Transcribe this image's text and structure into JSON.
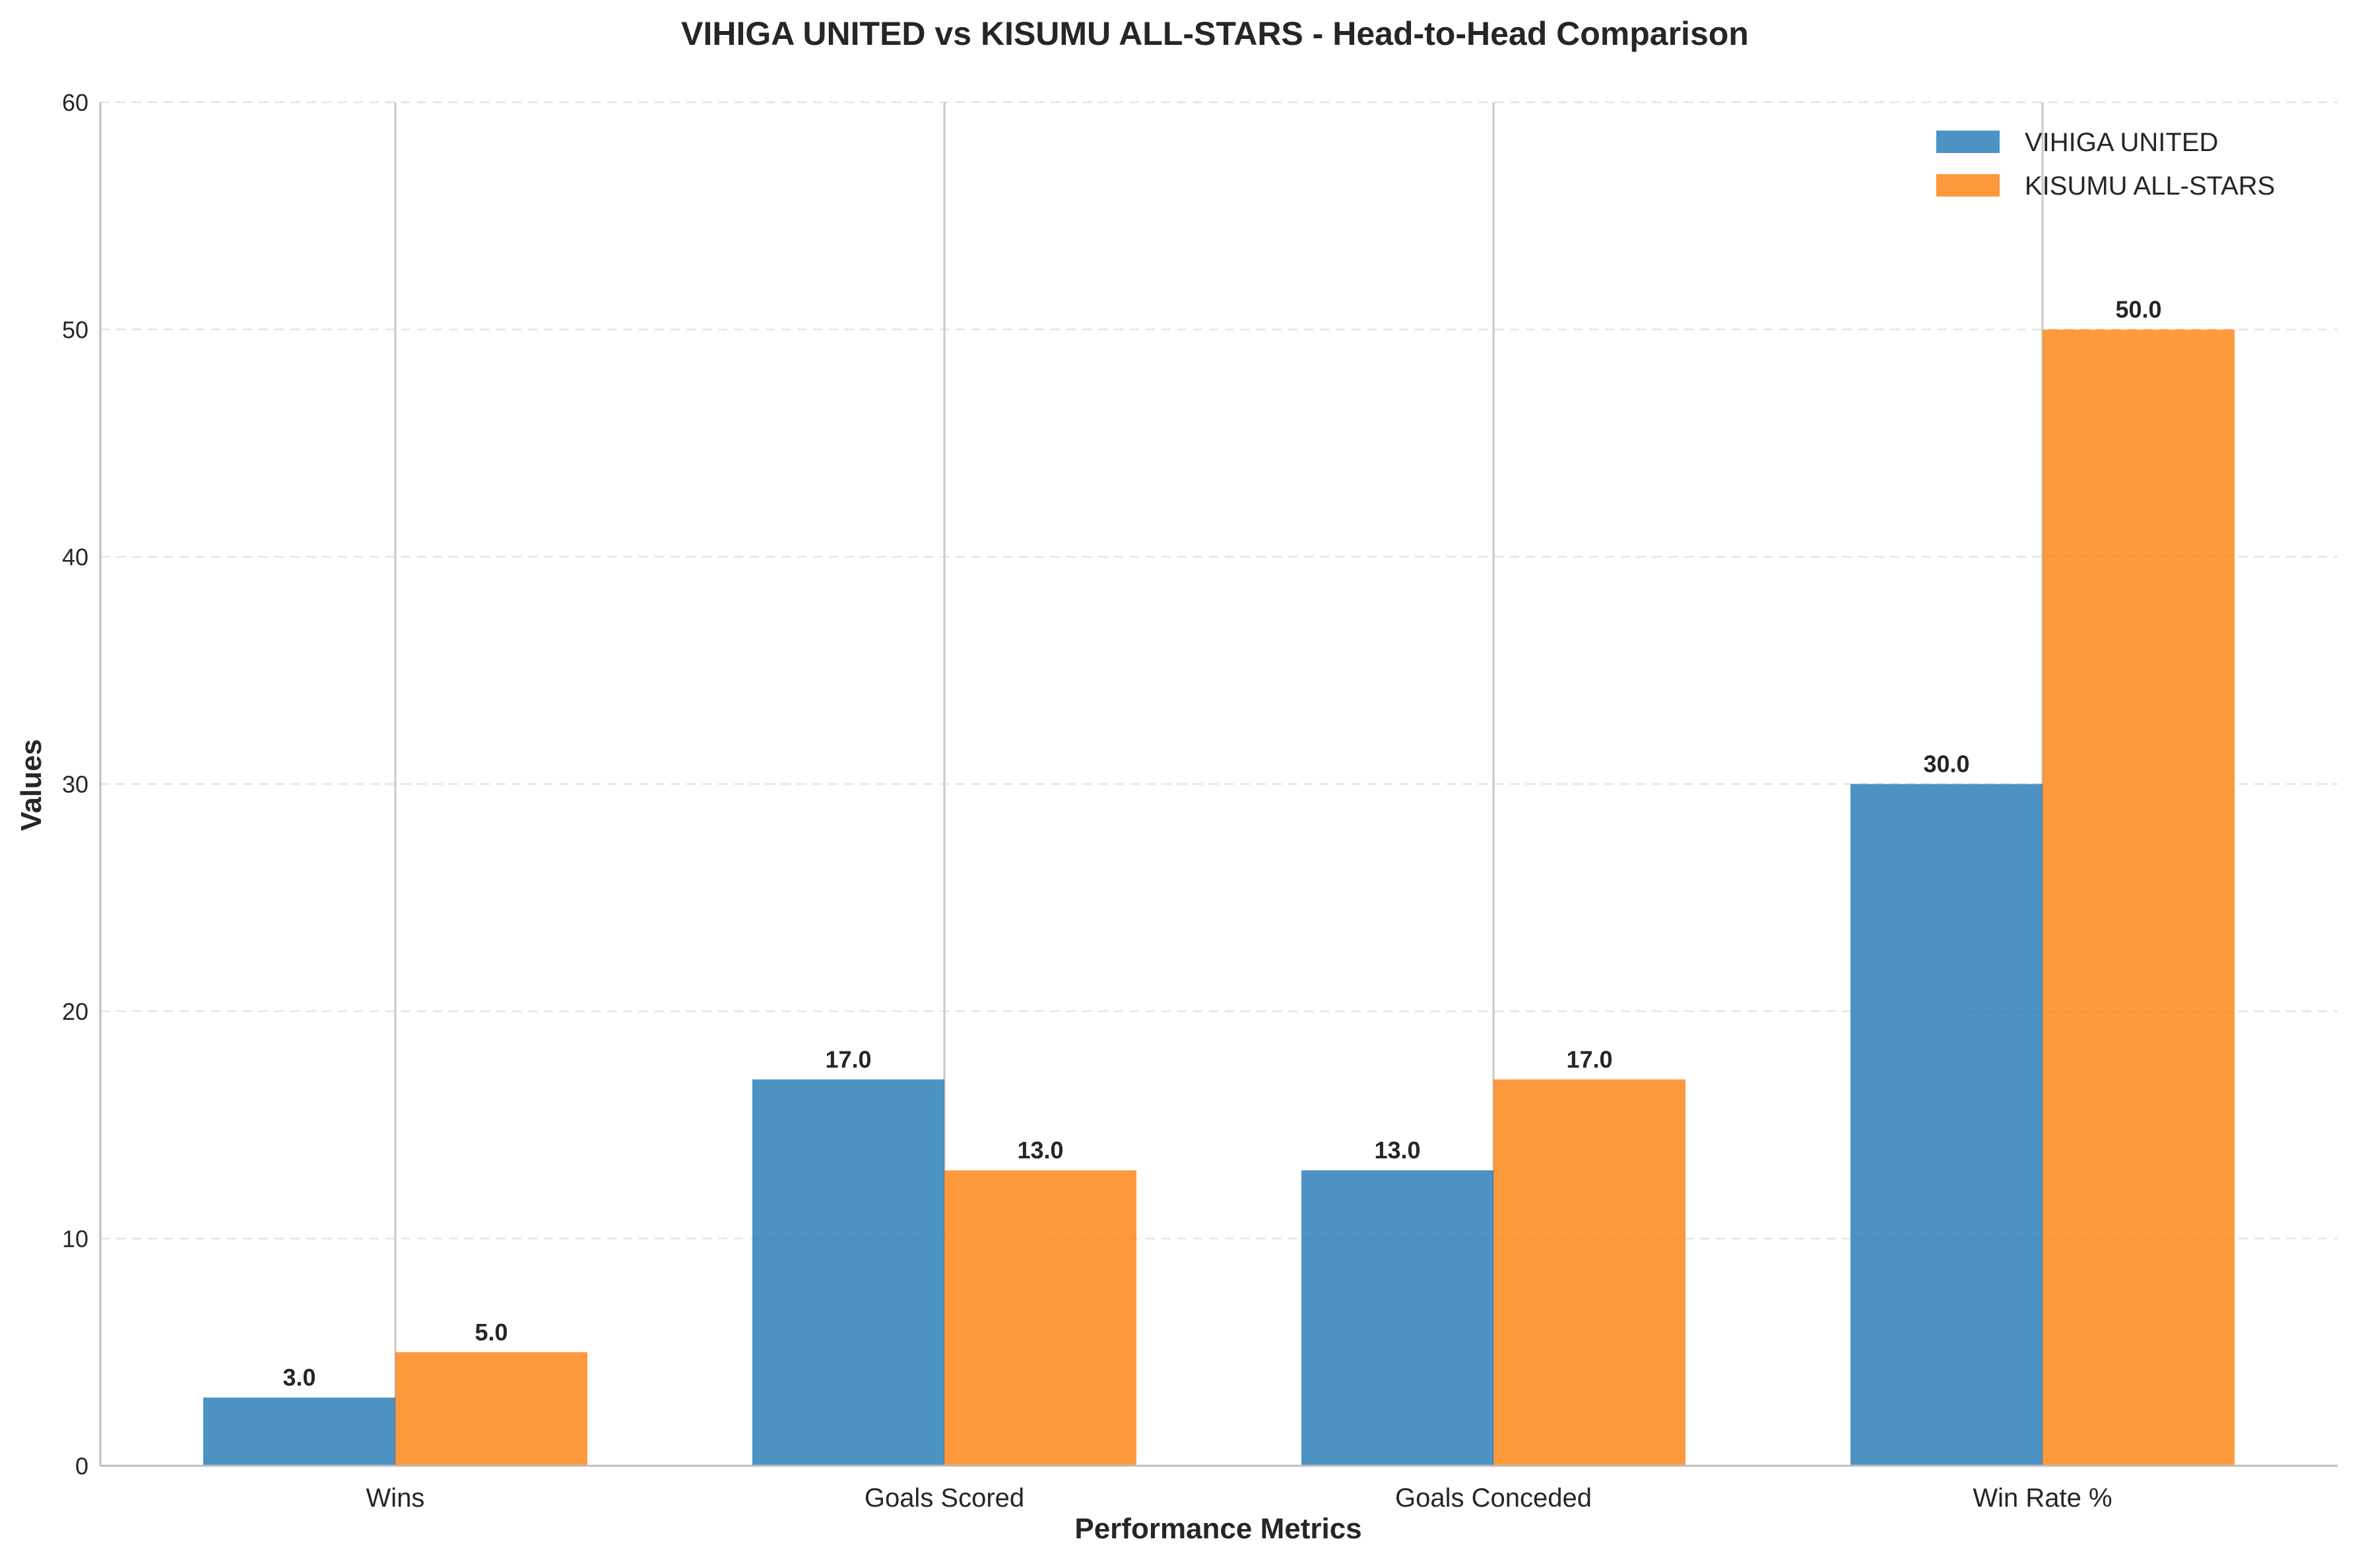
{
  "chart_data": {
    "type": "bar",
    "title": "VIHIGA UNITED vs KISUMU ALL-STARS - Head-to-Head Comparison",
    "xlabel": "Performance Metrics",
    "ylabel": "Values",
    "categories": [
      "Wins",
      "Goals Scored",
      "Goals Conceded",
      "Win Rate %"
    ],
    "series": [
      {
        "name": "VIHIGA UNITED",
        "color": "#1f77b4",
        "values": [
          3.0,
          17.0,
          13.0,
          30.0
        ],
        "labels": [
          "3.0",
          "17.0",
          "13.0",
          "30.0"
        ]
      },
      {
        "name": "KISUMU ALL-STARS",
        "color": "#ff7f0e",
        "values": [
          5.0,
          13.0,
          17.0,
          50.0
        ],
        "labels": [
          "5.0",
          "13.0",
          "17.0",
          "50.0"
        ]
      }
    ],
    "ylim": [
      0,
      60
    ],
    "yticks": [
      0,
      10,
      20,
      30,
      40,
      50,
      60
    ],
    "ytick_labels": [
      "0",
      "10",
      "20",
      "30",
      "40",
      "50",
      "60"
    ],
    "grid": true,
    "legend_position": "top-right"
  }
}
